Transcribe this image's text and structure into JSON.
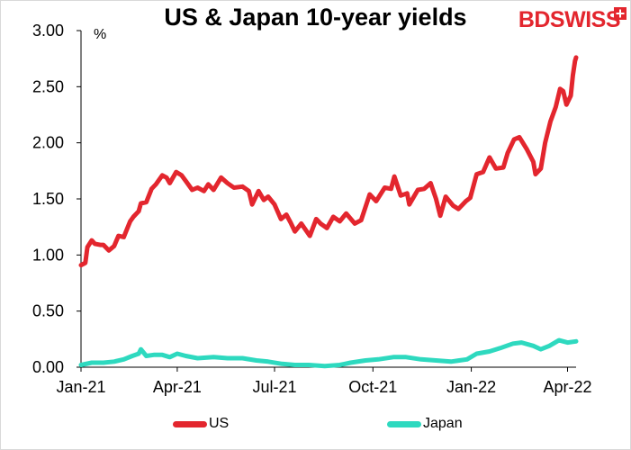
{
  "title": "US & Japan 10-year yields",
  "logo": {
    "text_bd": "BD",
    "text_swiss": "SWISS"
  },
  "unit": "%",
  "colors": {
    "us": "#e3262e",
    "japan": "#2ed9bf",
    "logo": "#e3262e"
  },
  "chart_data": {
    "type": "line",
    "title": "US & Japan 10-year yields",
    "ylabel": "%",
    "ylim": [
      0,
      3
    ],
    "yticks": [
      "0.00",
      "0.50",
      "1.00",
      "1.50",
      "2.00",
      "2.50",
      "3.00"
    ],
    "xticks": [
      "Jan-21",
      "Apr-21",
      "Jul-21",
      "Oct-21",
      "Jan-22",
      "Apr-22"
    ],
    "xrange": [
      "2021-01-01",
      "2022-04-09"
    ],
    "grid": false,
    "legend_position": "bottom",
    "series": [
      {
        "name": "US",
        "color": "#e3262e",
        "points": [
          [
            "2021-01-01",
            0.91
          ],
          [
            "2021-01-05",
            0.93
          ],
          [
            "2021-01-07",
            1.07
          ],
          [
            "2021-01-11",
            1.13
          ],
          [
            "2021-01-14",
            1.1
          ],
          [
            "2021-01-19",
            1.09
          ],
          [
            "2021-01-22",
            1.09
          ],
          [
            "2021-01-27",
            1.04
          ],
          [
            "2021-02-01",
            1.08
          ],
          [
            "2021-02-05",
            1.17
          ],
          [
            "2021-02-10",
            1.16
          ],
          [
            "2021-02-16",
            1.3
          ],
          [
            "2021-02-19",
            1.34
          ],
          [
            "2021-02-24",
            1.39
          ],
          [
            "2021-02-26",
            1.46
          ],
          [
            "2021-03-03",
            1.47
          ],
          [
            "2021-03-08",
            1.59
          ],
          [
            "2021-03-12",
            1.63
          ],
          [
            "2021-03-18",
            1.71
          ],
          [
            "2021-03-22",
            1.69
          ],
          [
            "2021-03-25",
            1.64
          ],
          [
            "2021-03-31",
            1.74
          ],
          [
            "2021-04-05",
            1.71
          ],
          [
            "2021-04-09",
            1.66
          ],
          [
            "2021-04-15",
            1.58
          ],
          [
            "2021-04-20",
            1.6
          ],
          [
            "2021-04-26",
            1.57
          ],
          [
            "2021-04-30",
            1.63
          ],
          [
            "2021-05-05",
            1.58
          ],
          [
            "2021-05-12",
            1.69
          ],
          [
            "2021-05-18",
            1.64
          ],
          [
            "2021-05-24",
            1.6
          ],
          [
            "2021-06-01",
            1.61
          ],
          [
            "2021-06-07",
            1.57
          ],
          [
            "2021-06-10",
            1.45
          ],
          [
            "2021-06-16",
            1.57
          ],
          [
            "2021-06-21",
            1.49
          ],
          [
            "2021-06-25",
            1.52
          ],
          [
            "2021-07-01",
            1.45
          ],
          [
            "2021-07-07",
            1.32
          ],
          [
            "2021-07-12",
            1.36
          ],
          [
            "2021-07-16",
            1.29
          ],
          [
            "2021-07-20",
            1.21
          ],
          [
            "2021-07-26",
            1.28
          ],
          [
            "2021-08-03",
            1.17
          ],
          [
            "2021-08-09",
            1.32
          ],
          [
            "2021-08-13",
            1.28
          ],
          [
            "2021-08-19",
            1.24
          ],
          [
            "2021-08-25",
            1.34
          ],
          [
            "2021-08-31",
            1.3
          ],
          [
            "2021-09-06",
            1.37
          ],
          [
            "2021-09-14",
            1.28
          ],
          [
            "2021-09-20",
            1.31
          ],
          [
            "2021-09-28",
            1.54
          ],
          [
            "2021-10-04",
            1.48
          ],
          [
            "2021-10-12",
            1.6
          ],
          [
            "2021-10-18",
            1.59
          ],
          [
            "2021-10-21",
            1.7
          ],
          [
            "2021-10-27",
            1.53
          ],
          [
            "2021-11-02",
            1.55
          ],
          [
            "2021-11-04",
            1.45
          ],
          [
            "2021-11-12",
            1.58
          ],
          [
            "2021-11-18",
            1.59
          ],
          [
            "2021-11-24",
            1.64
          ],
          [
            "2021-11-29",
            1.5
          ],
          [
            "2021-12-03",
            1.35
          ],
          [
            "2021-12-08",
            1.52
          ],
          [
            "2021-12-15",
            1.44
          ],
          [
            "2021-12-20",
            1.41
          ],
          [
            "2021-12-27",
            1.48
          ],
          [
            "2021-12-31",
            1.51
          ],
          [
            "2022-01-06",
            1.72
          ],
          [
            "2022-01-12",
            1.74
          ],
          [
            "2022-01-18",
            1.87
          ],
          [
            "2022-01-24",
            1.77
          ],
          [
            "2022-01-31",
            1.78
          ],
          [
            "2022-02-04",
            1.91
          ],
          [
            "2022-02-10",
            2.03
          ],
          [
            "2022-02-15",
            2.05
          ],
          [
            "2022-02-22",
            1.94
          ],
          [
            "2022-02-28",
            1.83
          ],
          [
            "2022-03-02",
            1.72
          ],
          [
            "2022-03-07",
            1.77
          ],
          [
            "2022-03-11",
            2.0
          ],
          [
            "2022-03-16",
            2.19
          ],
          [
            "2022-03-21",
            2.32
          ],
          [
            "2022-03-25",
            2.48
          ],
          [
            "2022-03-28",
            2.46
          ],
          [
            "2022-03-31",
            2.34
          ],
          [
            "2022-04-04",
            2.42
          ],
          [
            "2022-04-06",
            2.6
          ],
          [
            "2022-04-08",
            2.73
          ],
          [
            "2022-04-09",
            2.76
          ]
        ]
      },
      {
        "name": "Japan",
        "color": "#2ed9bf",
        "points": [
          [
            "2021-01-01",
            0.02
          ],
          [
            "2021-01-11",
            0.04
          ],
          [
            "2021-01-22",
            0.04
          ],
          [
            "2021-02-01",
            0.05
          ],
          [
            "2021-02-10",
            0.07
          ],
          [
            "2021-02-18",
            0.1
          ],
          [
            "2021-02-24",
            0.12
          ],
          [
            "2021-02-26",
            0.16
          ],
          [
            "2021-03-03",
            0.1
          ],
          [
            "2021-03-10",
            0.11
          ],
          [
            "2021-03-18",
            0.11
          ],
          [
            "2021-03-25",
            0.09
          ],
          [
            "2021-04-01",
            0.12
          ],
          [
            "2021-04-09",
            0.1
          ],
          [
            "2021-04-20",
            0.08
          ],
          [
            "2021-05-05",
            0.09
          ],
          [
            "2021-05-18",
            0.08
          ],
          [
            "2021-06-01",
            0.08
          ],
          [
            "2021-06-14",
            0.06
          ],
          [
            "2021-06-25",
            0.05
          ],
          [
            "2021-07-08",
            0.03
          ],
          [
            "2021-07-20",
            0.02
          ],
          [
            "2021-08-02",
            0.02
          ],
          [
            "2021-08-17",
            0.01
          ],
          [
            "2021-08-31",
            0.02
          ],
          [
            "2021-09-10",
            0.04
          ],
          [
            "2021-09-24",
            0.06
          ],
          [
            "2021-10-06",
            0.07
          ],
          [
            "2021-10-20",
            0.09
          ],
          [
            "2021-11-01",
            0.09
          ],
          [
            "2021-11-15",
            0.07
          ],
          [
            "2021-11-29",
            0.06
          ],
          [
            "2021-12-13",
            0.05
          ],
          [
            "2021-12-28",
            0.07
          ],
          [
            "2022-01-06",
            0.12
          ],
          [
            "2022-01-18",
            0.14
          ],
          [
            "2022-01-28",
            0.17
          ],
          [
            "2022-02-09",
            0.21
          ],
          [
            "2022-02-17",
            0.22
          ],
          [
            "2022-02-28",
            0.19
          ],
          [
            "2022-03-07",
            0.16
          ],
          [
            "2022-03-15",
            0.19
          ],
          [
            "2022-03-24",
            0.24
          ],
          [
            "2022-04-01",
            0.22
          ],
          [
            "2022-04-09",
            0.23
          ]
        ]
      }
    ]
  },
  "legend": {
    "us_label": "US",
    "japan_label": "Japan"
  }
}
